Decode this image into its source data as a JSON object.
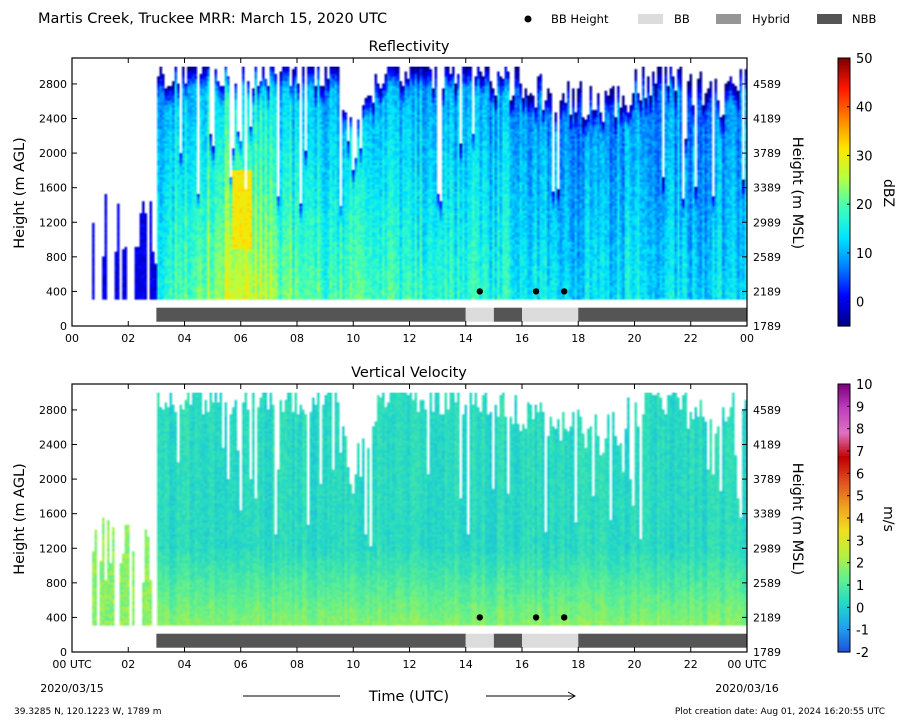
{
  "figure": {
    "title": "Martis Creek, Truckee MRR:  March 15, 2020 UTC",
    "legend": [
      {
        "label": "BB Height",
        "marker": "dot",
        "color": "#000000"
      },
      {
        "label": "BB",
        "marker": "patch",
        "color": "#dcdcdc"
      },
      {
        "label": "Hybrid",
        "marker": "patch",
        "color": "#969696"
      },
      {
        "label": "NBB",
        "marker": "patch",
        "color": "#555555"
      }
    ],
    "xlabel": "Time (UTC)",
    "date_start": "2020/03/15",
    "date_end": "2020/03/16",
    "location": "39.3285 N, 120.1223 W, 1789 m",
    "creation": "Plot creation date: Aug 01, 2024 16:20:55 UTC"
  },
  "chart_data": [
    {
      "type": "heatmap",
      "title": "Reflectivity",
      "ylabel": "Height (m AGL)",
      "y2label": "Height (m MSL)",
      "xlim": [
        0,
        24
      ],
      "ylim": [
        0,
        3100
      ],
      "x_ticks": [
        "00",
        "02",
        "04",
        "06",
        "08",
        "10",
        "12",
        "14",
        "16",
        "18",
        "20",
        "22",
        "00"
      ],
      "y_ticks": [
        0,
        400,
        800,
        1200,
        1600,
        2000,
        2400,
        2800
      ],
      "y2_ticks": [
        1789,
        2189,
        2589,
        2989,
        3389,
        3789,
        4189,
        4589
      ],
      "colorbar": {
        "label": "dBZ",
        "min": -5,
        "max": 50,
        "ticks": [
          0,
          10,
          20,
          30,
          40,
          50
        ]
      },
      "data_height_range": [
        300,
        3000
      ],
      "bb_height_points": [
        [
          14.5,
          400
        ],
        [
          16.5,
          400
        ],
        [
          17.5,
          400
        ]
      ],
      "bb_type_segments": [
        {
          "start": 3.0,
          "end": 14.0,
          "type": "NBB"
        },
        {
          "start": 14.0,
          "end": 15.0,
          "type": "BB"
        },
        {
          "start": 15.0,
          "end": 16.0,
          "type": "NBB"
        },
        {
          "start": 16.0,
          "end": 18.0,
          "type": "BB"
        },
        {
          "start": 18.0,
          "end": 24.0,
          "type": "NBB"
        }
      ],
      "echo_tops": [
        {
          "t": 0.6,
          "top": 1200
        },
        {
          "t": 1.0,
          "top": 1500
        },
        {
          "t": 1.5,
          "top": 1300
        },
        {
          "t": 2.0,
          "top": 1200
        },
        {
          "t": 2.5,
          "top": 1100
        },
        {
          "t": 3.0,
          "top": 3000
        },
        {
          "t": 9.5,
          "top": 3000
        },
        {
          "t": 10.0,
          "top": 2000
        },
        {
          "t": 11.0,
          "top": 3000
        },
        {
          "t": 14.0,
          "top": 3000
        },
        {
          "t": 19.0,
          "top": 2500
        },
        {
          "t": 21.0,
          "top": 3000
        },
        {
          "t": 23.0,
          "top": 2600
        },
        {
          "t": 24.0,
          "top": 3000
        }
      ],
      "intensity_profile": [
        {
          "t": 3.0,
          "dbz": 14
        },
        {
          "t": 4.5,
          "dbz": 20
        },
        {
          "t": 5.5,
          "dbz": 24
        },
        {
          "t": 6.0,
          "dbz": 28
        },
        {
          "t": 7.5,
          "dbz": 20
        },
        {
          "t": 9.0,
          "dbz": 18
        },
        {
          "t": 11.0,
          "dbz": 18
        },
        {
          "t": 13.0,
          "dbz": 16
        },
        {
          "t": 15.0,
          "dbz": 15
        },
        {
          "t": 18.0,
          "dbz": 12
        },
        {
          "t": 20.0,
          "dbz": 13
        },
        {
          "t": 22.0,
          "dbz": 12
        },
        {
          "t": 24.0,
          "dbz": 11
        }
      ],
      "core": {
        "t_start": 5.7,
        "t_end": 6.4,
        "h_low": 900,
        "h_high": 1800,
        "dbz": 33
      }
    },
    {
      "type": "heatmap",
      "title": "Vertical Velocity",
      "ylabel": "Height (m AGL)",
      "y2label": "Height (m MSL)",
      "xlim": [
        0,
        24
      ],
      "ylim": [
        0,
        3100
      ],
      "x_ticks": [
        "00 UTC",
        "02",
        "04",
        "06",
        "08",
        "10",
        "12",
        "14",
        "16",
        "18",
        "20",
        "22",
        "00 UTC"
      ],
      "y_ticks": [
        0,
        400,
        800,
        1200,
        1600,
        2000,
        2400,
        2800
      ],
      "y2_ticks": [
        1789,
        2189,
        2589,
        2989,
        3389,
        3789,
        4189,
        4589
      ],
      "colorbar": {
        "label": "m/s",
        "min": -2,
        "max": 10,
        "ticks": [
          -2,
          -1,
          0,
          1,
          2,
          3,
          4,
          5,
          6,
          7,
          8,
          9,
          10
        ]
      },
      "data_height_range": [
        300,
        3000
      ],
      "bb_height_points": [
        [
          14.5,
          400
        ],
        [
          16.5,
          400
        ],
        [
          17.5,
          400
        ]
      ],
      "bb_type_segments": [
        {
          "start": 3.0,
          "end": 14.0,
          "type": "NBB"
        },
        {
          "start": 14.0,
          "end": 15.0,
          "type": "BB"
        },
        {
          "start": 15.0,
          "end": 16.0,
          "type": "NBB"
        },
        {
          "start": 16.0,
          "end": 18.0,
          "type": "BB"
        },
        {
          "start": 18.0,
          "end": 24.0,
          "type": "NBB"
        }
      ],
      "typical_velocity": {
        "aloft": 0.3,
        "near_surface": 1.8
      }
    }
  ],
  "colormaps": {
    "dbz": [
      "#00007f",
      "#0000ff",
      "#0080ff",
      "#00e5ff",
      "#40ffb8",
      "#b8ff40",
      "#ffe500",
      "#ff8000",
      "#ff1600",
      "#7f0000"
    ],
    "vel": [
      "#1f4fd8",
      "#1f9ff0",
      "#22d8c8",
      "#60f090",
      "#b8f040",
      "#f0e020",
      "#f0a020",
      "#e05020",
      "#c00000",
      "#e070c0",
      "#c040c0",
      "#800080"
    ]
  }
}
